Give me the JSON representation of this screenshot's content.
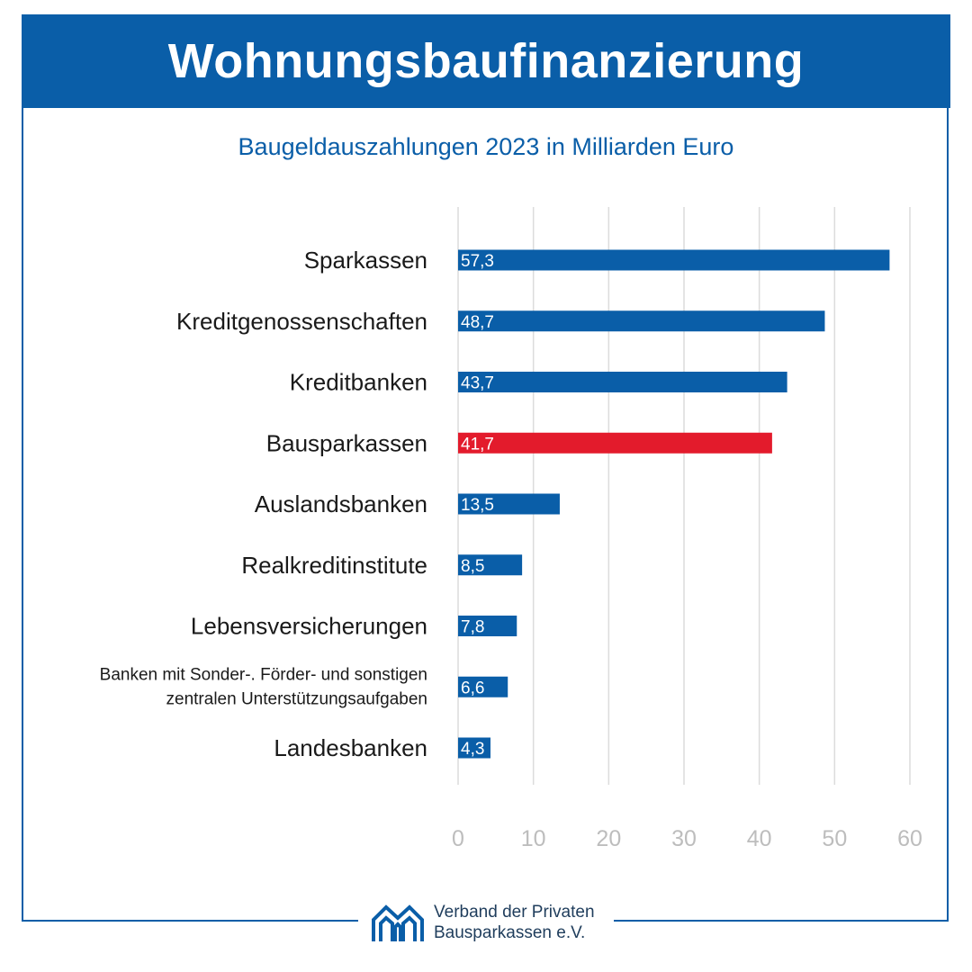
{
  "header": {
    "title": "Wohnungsbaufinanzierung"
  },
  "subtitle": "Baugeldauszahlungen 2023 in Milliarden Euro",
  "colors": {
    "brand_blue": "#0a5ea8",
    "highlight_red": "#e31b2c",
    "grid": "#dcdcdc",
    "tick": "#bdbdbd"
  },
  "chart_data": {
    "type": "bar",
    "orientation": "horizontal",
    "categories": [
      [
        "Sparkassen"
      ],
      [
        "Kreditgenossenschaften"
      ],
      [
        "Kreditbanken"
      ],
      [
        "Bausparkassen"
      ],
      [
        "Auslandsbanken"
      ],
      [
        "Realkreditinstitute"
      ],
      [
        "Lebensversicherungen"
      ],
      [
        "Banken mit Sonder-. Förder- und sonstigen",
        "zentralen Unterstützungsaufgaben"
      ],
      [
        "Landesbanken"
      ]
    ],
    "values": [
      57.3,
      48.7,
      43.7,
      41.7,
      13.5,
      8.5,
      7.8,
      6.6,
      4.3
    ],
    "value_labels": [
      "57,3",
      "48,7",
      "43,7",
      "41,7",
      "13,5",
      "8,5",
      "7,8",
      "6,6",
      "4,3"
    ],
    "highlight_index": 3,
    "xlim": [
      0,
      60
    ],
    "xticks": [
      0,
      10,
      20,
      30,
      40,
      50,
      60
    ],
    "grid": true,
    "legend": false,
    "xlabel": "",
    "ylabel": ""
  },
  "logo": {
    "line1": "Verband der Privaten",
    "line2": "Bausparkassen e.V."
  }
}
